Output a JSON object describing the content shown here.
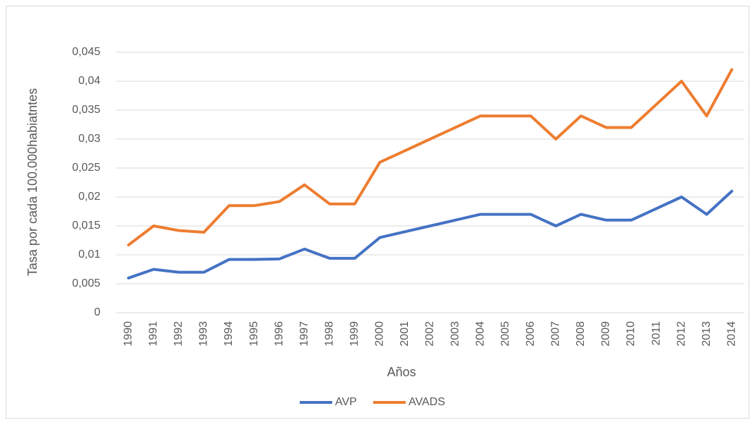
{
  "chart_data": {
    "type": "line",
    "y_label": "Tasa por cada 100.000habiatntes",
    "x_label": "Años",
    "categories": [
      "1990",
      "1991",
      "1992",
      "1993",
      "1994",
      "1995",
      "1996",
      "1997",
      "1998",
      "1999",
      "2000",
      "2001",
      "2002",
      "2003",
      "2004",
      "2005",
      "2006",
      "2007",
      "2008",
      "2009",
      "2010",
      "2011",
      "2012",
      "2013",
      "2014"
    ],
    "series": [
      {
        "name": "AVP",
        "color": "#4472c4",
        "values": [
          0.006,
          0.0075,
          0.007,
          0.007,
          0.0092,
          0.0092,
          0.0093,
          0.011,
          0.0094,
          0.0094,
          0.013,
          0.014,
          0.015,
          0.016,
          0.017,
          0.017,
          0.017,
          0.015,
          0.017,
          0.016,
          0.016,
          0.018,
          0.02,
          0.017,
          0.021
        ]
      },
      {
        "name": "AVADS",
        "color": "#ed7d31",
        "values": [
          0.0117,
          0.015,
          0.0142,
          0.0139,
          0.0185,
          0.0185,
          0.0192,
          0.0221,
          0.0188,
          0.0188,
          0.026,
          0.028,
          0.03,
          0.032,
          0.034,
          0.034,
          0.034,
          0.03,
          0.034,
          0.032,
          0.032,
          0.036,
          0.04,
          0.034,
          0.042
        ]
      }
    ],
    "ylim": [
      0,
      0.045
    ],
    "yticks": [
      0,
      {
        "value": 0.005,
        "label": "0,005"
      },
      {
        "value": 0.01,
        "label": "0,01"
      },
      {
        "value": 0.015,
        "label": "0,015"
      },
      {
        "value": 0.02,
        "label": "0,02"
      },
      {
        "value": 0.025,
        "label": "0,025"
      },
      {
        "value": 0.03,
        "label": "0,03"
      },
      {
        "value": 0.035,
        "label": "0,035"
      },
      {
        "value": 0.04,
        "label": "0,04"
      },
      {
        "value": 0.045,
        "label": "0,045"
      }
    ],
    "grid": true,
    "legend": "bottom"
  }
}
